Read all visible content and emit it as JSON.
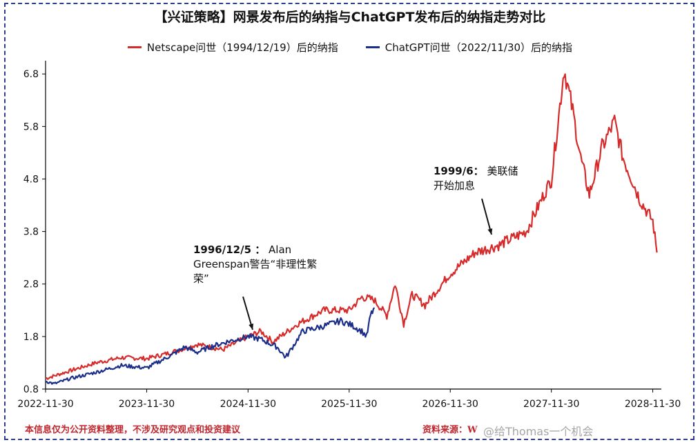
{
  "title": "【兴证策略】网景发布后的纳指与ChatGPT发布后的纳指走势对比",
  "footer": {
    "disclaimer": "本信息仅为公开资料整理，不涉及研究观点和投资建议",
    "source": "资料来源：W",
    "watermark": "@给Thomas一个机会"
  },
  "colors": {
    "netscape": "#d62b2b",
    "chatgpt": "#1b2e8a",
    "axis": "#000000"
  },
  "chart_data": {
    "type": "line",
    "title": "【兴证策略】网景发布后的纳指与ChatGPT发布后的纳指走势对比",
    "xlabel": "",
    "ylabel": "",
    "ylim": [
      0.8,
      7.0
    ],
    "yticks": [
      "0.8",
      "1.8",
      "2.8",
      "3.8",
      "4.8",
      "5.8",
      "6.8"
    ],
    "xticks": [
      "2022-11-30",
      "2023-11-30",
      "2024-11-30",
      "2025-11-30",
      "2026-11-30",
      "2027-11-30",
      "2028-11-30"
    ],
    "legend": "top-center",
    "grid": false,
    "series": [
      {
        "name": "Netscape问世（1994/12/19）后的纳指",
        "color": "#d62b2b",
        "x": [
          "2022-11-30",
          "2023-02-28",
          "2023-05-31",
          "2023-08-31",
          "2023-11-30",
          "2024-02-29",
          "2024-05-31",
          "2024-08-31",
          "2024-11-30",
          "2025-01-15",
          "2025-02-28",
          "2025-05-31",
          "2025-08-31",
          "2025-11-30",
          "2026-01-15",
          "2026-02-28",
          "2026-04-15",
          "2026-05-15",
          "2026-06-15",
          "2026-07-15",
          "2026-08-31",
          "2026-11-30",
          "2027-02-28",
          "2027-05-31",
          "2027-06-15",
          "2027-08-31",
          "2027-11-30",
          "2027-12-31",
          "2028-01-15",
          "2028-02-15",
          "2028-03-15",
          "2028-04-15",
          "2028-05-31",
          "2028-07-15",
          "2028-08-15",
          "2028-09-15",
          "2028-10-15",
          "2028-11-30",
          "2028-12-15"
        ],
        "values": [
          1.0,
          1.15,
          1.3,
          1.4,
          1.38,
          1.5,
          1.65,
          1.55,
          1.8,
          1.9,
          1.7,
          2.05,
          2.3,
          2.3,
          2.55,
          2.5,
          2.2,
          2.8,
          2.05,
          2.6,
          2.4,
          3.0,
          3.4,
          3.55,
          3.6,
          3.8,
          4.8,
          6.2,
          6.9,
          6.1,
          5.2,
          4.5,
          5.4,
          5.9,
          5.2,
          4.8,
          4.4,
          4.0,
          3.4
        ]
      },
      {
        "name": "ChatGPT问世（2022/11/30）后的纳指",
        "color": "#1b2e8a",
        "x": [
          "2022-11-30",
          "2022-12-31",
          "2023-02-28",
          "2023-05-31",
          "2023-08-31",
          "2023-11-30",
          "2024-02-29",
          "2024-04-15",
          "2024-05-31",
          "2024-07-15",
          "2024-09-15",
          "2024-11-30",
          "2025-01-15",
          "2025-03-15",
          "2025-04-15",
          "2025-06-15",
          "2025-08-31",
          "2025-10-31",
          "2025-12-15",
          "2026-01-15",
          "2026-02-01",
          "2026-02-15",
          "2026-03-01"
        ],
        "values": [
          0.95,
          0.9,
          1.0,
          1.12,
          1.25,
          1.2,
          1.45,
          1.6,
          1.5,
          1.6,
          1.7,
          1.8,
          1.75,
          1.6,
          1.4,
          1.9,
          2.0,
          2.1,
          2.0,
          1.9,
          1.8,
          2.2,
          2.35
        ]
      }
    ],
    "annotations": [
      {
        "date": "1996/12/5",
        "text_bold": "1996/12/5 ：",
        "text": "Alan Greenspan警告“非理性繁荣”"
      },
      {
        "date": "1999/6",
        "text_bold": "1999/6：",
        "text": "美联储开始加息"
      }
    ]
  }
}
